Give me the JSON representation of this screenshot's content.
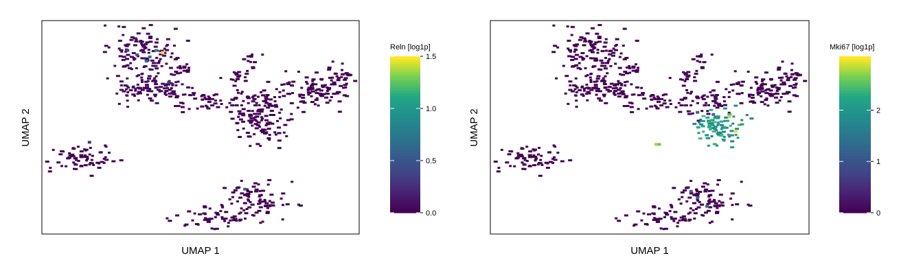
{
  "chart_data": [
    {
      "type": "scatter",
      "style": "hexbin-embedding",
      "xlabel": "UMAP 1",
      "ylabel": "UMAP 2",
      "xlim": [
        0,
        100
      ],
      "ylim": [
        0,
        100
      ],
      "colorbar": {
        "title": "Reln [log1p]",
        "range": [
          0,
          1.5
        ],
        "ticks": [
          0.0,
          0.5,
          1.0,
          1.5
        ],
        "tick_labels": [
          "0.0",
          "0.5",
          "1.0",
          "1.5"
        ],
        "colormap": "viridis"
      },
      "clusters": [
        {
          "cx": 32,
          "cy": 86,
          "sx": 5,
          "sy": 6,
          "n": 110,
          "value": 0.05
        },
        {
          "cx": 35,
          "cy": 68,
          "sx": 6,
          "sy": 4,
          "n": 110,
          "value": 0.05
        },
        {
          "cx": 44,
          "cy": 78,
          "sx": 2,
          "sy": 1.5,
          "n": 18,
          "value": 0.0
        },
        {
          "cx": 52,
          "cy": 62,
          "sx": 4,
          "sy": 2.5,
          "n": 35,
          "value": 0.0
        },
        {
          "cx": 67,
          "cy": 62,
          "sx": 5,
          "sy": 4,
          "n": 60,
          "value": 0.0
        },
        {
          "cx": 70,
          "cy": 52,
          "sx": 5,
          "sy": 5,
          "n": 90,
          "value": 0.0
        },
        {
          "cx": 85,
          "cy": 68,
          "sx": 6,
          "sy": 4,
          "n": 90,
          "value": 0.0
        },
        {
          "cx": 94,
          "cy": 74,
          "sx": 2,
          "sy": 2.5,
          "n": 30,
          "value": 0.0
        },
        {
          "cx": 66,
          "cy": 81,
          "sx": 1.5,
          "sy": 2,
          "n": 12,
          "value": 0.0
        },
        {
          "cx": 62,
          "cy": 74,
          "sx": 2,
          "sy": 1.5,
          "n": 15,
          "value": 0.0
        },
        {
          "cx": 12,
          "cy": 35,
          "sx": 5,
          "sy": 3.5,
          "n": 70,
          "value": 0.0
        },
        {
          "cx": 67,
          "cy": 16,
          "sx": 5,
          "sy": 4,
          "n": 80,
          "value": 0.0
        },
        {
          "cx": 55,
          "cy": 8,
          "sx": 7,
          "sy": 2.5,
          "n": 55,
          "value": 0.0
        }
      ],
      "highlights": [
        {
          "x": 34,
          "y": 83,
          "value": 0.7
        },
        {
          "x": 30,
          "y": 84,
          "value": 0.5
        },
        {
          "x": 36,
          "y": 86,
          "value": 0.9
        },
        {
          "x": 38,
          "y": 85,
          "value": 1.5
        },
        {
          "x": 33,
          "y": 81,
          "value": 0.6
        },
        {
          "x": 27,
          "y": 86,
          "value": 0.4
        },
        {
          "x": 40,
          "y": 71,
          "value": 0.3
        },
        {
          "x": 64,
          "y": 21,
          "value": 0.6
        },
        {
          "x": 15,
          "y": 43,
          "value": 0.3
        }
      ]
    },
    {
      "type": "scatter",
      "style": "hexbin-embedding",
      "xlabel": "UMAP 1",
      "ylabel": "UMAP 2",
      "xlim": [
        0,
        100
      ],
      "ylim": [
        0,
        100
      ],
      "colorbar": {
        "title": "Mki67 [log1p]",
        "range": [
          0,
          3.05
        ],
        "ticks": [
          0,
          1,
          2
        ],
        "tick_labels": [
          "0",
          "1",
          "2"
        ],
        "colormap": "viridis"
      },
      "clusters": [
        {
          "cx": 32,
          "cy": 86,
          "sx": 5,
          "sy": 6,
          "n": 110,
          "value": 0.0
        },
        {
          "cx": 35,
          "cy": 68,
          "sx": 6,
          "sy": 4,
          "n": 110,
          "value": 0.0
        },
        {
          "cx": 44,
          "cy": 78,
          "sx": 2,
          "sy": 1.5,
          "n": 18,
          "value": 0.0
        },
        {
          "cx": 52,
          "cy": 62,
          "sx": 4,
          "sy": 2.5,
          "n": 35,
          "value": 0.0
        },
        {
          "cx": 67,
          "cy": 62,
          "sx": 5,
          "sy": 4,
          "n": 60,
          "value": 0.05
        },
        {
          "cx": 72,
          "cy": 50,
          "sx": 4,
          "sy": 4,
          "n": 90,
          "value": 2.1
        },
        {
          "cx": 85,
          "cy": 68,
          "sx": 6,
          "sy": 4,
          "n": 90,
          "value": 0.0
        },
        {
          "cx": 94,
          "cy": 74,
          "sx": 2,
          "sy": 2.5,
          "n": 30,
          "value": 0.0
        },
        {
          "cx": 66,
          "cy": 81,
          "sx": 1.5,
          "sy": 2,
          "n": 12,
          "value": 0.0
        },
        {
          "cx": 62,
          "cy": 74,
          "sx": 2,
          "sy": 1.5,
          "n": 15,
          "value": 0.0
        },
        {
          "cx": 12,
          "cy": 35,
          "sx": 5,
          "sy": 3.5,
          "n": 70,
          "value": 0.0
        },
        {
          "cx": 67,
          "cy": 16,
          "sx": 5,
          "sy": 4,
          "n": 80,
          "value": 0.0
        },
        {
          "cx": 55,
          "cy": 8,
          "sx": 7,
          "sy": 2.5,
          "n": 55,
          "value": 0.0
        }
      ],
      "highlights": [
        {
          "x": 52,
          "y": 42,
          "value": 2.8
        },
        {
          "x": 53,
          "y": 42,
          "value": 2.6
        },
        {
          "x": 70,
          "y": 56,
          "value": 1.4
        },
        {
          "x": 65,
          "y": 57,
          "value": 1.2
        },
        {
          "x": 75,
          "y": 55,
          "value": 2.9
        },
        {
          "x": 77,
          "y": 48,
          "value": 3.0
        },
        {
          "x": 63,
          "y": 20,
          "value": 1.1
        },
        {
          "x": 65,
          "y": 17,
          "value": 1.5
        },
        {
          "x": 68,
          "y": 13,
          "value": 1.3
        }
      ]
    }
  ]
}
